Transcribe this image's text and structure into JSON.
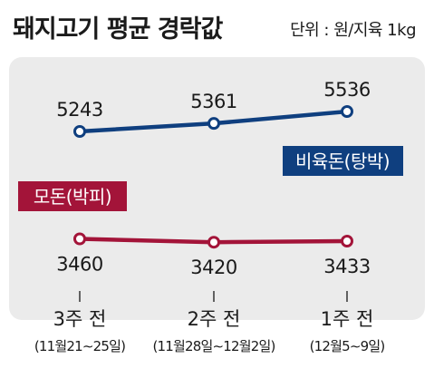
{
  "header": {
    "title": "돼지고기 평균 경락값",
    "unit": "단위 : 원/지육 1kg"
  },
  "colors": {
    "series_blue": "#0f3f7f",
    "series_red": "#a31439",
    "panel_bg": "#ebebeb"
  },
  "chart_data": {
    "type": "line",
    "title": "돼지고기 평균 경락값",
    "unit": "단위 : 원/지육 1kg",
    "categories": [
      "3주 전",
      "2주 전",
      "1주 전"
    ],
    "category_dates": [
      "(11월21∼25일)",
      "(11월28일∼12월2일)",
      "(12월5∼9일)"
    ],
    "series": [
      {
        "name": "비육돈(탕박)",
        "values": [
          5243,
          5361,
          5536
        ],
        "color": "#0f3f7f"
      },
      {
        "name": "모돈(박피)",
        "values": [
          3460,
          3420,
          3433
        ],
        "color": "#a31439"
      }
    ],
    "grid": false
  }
}
